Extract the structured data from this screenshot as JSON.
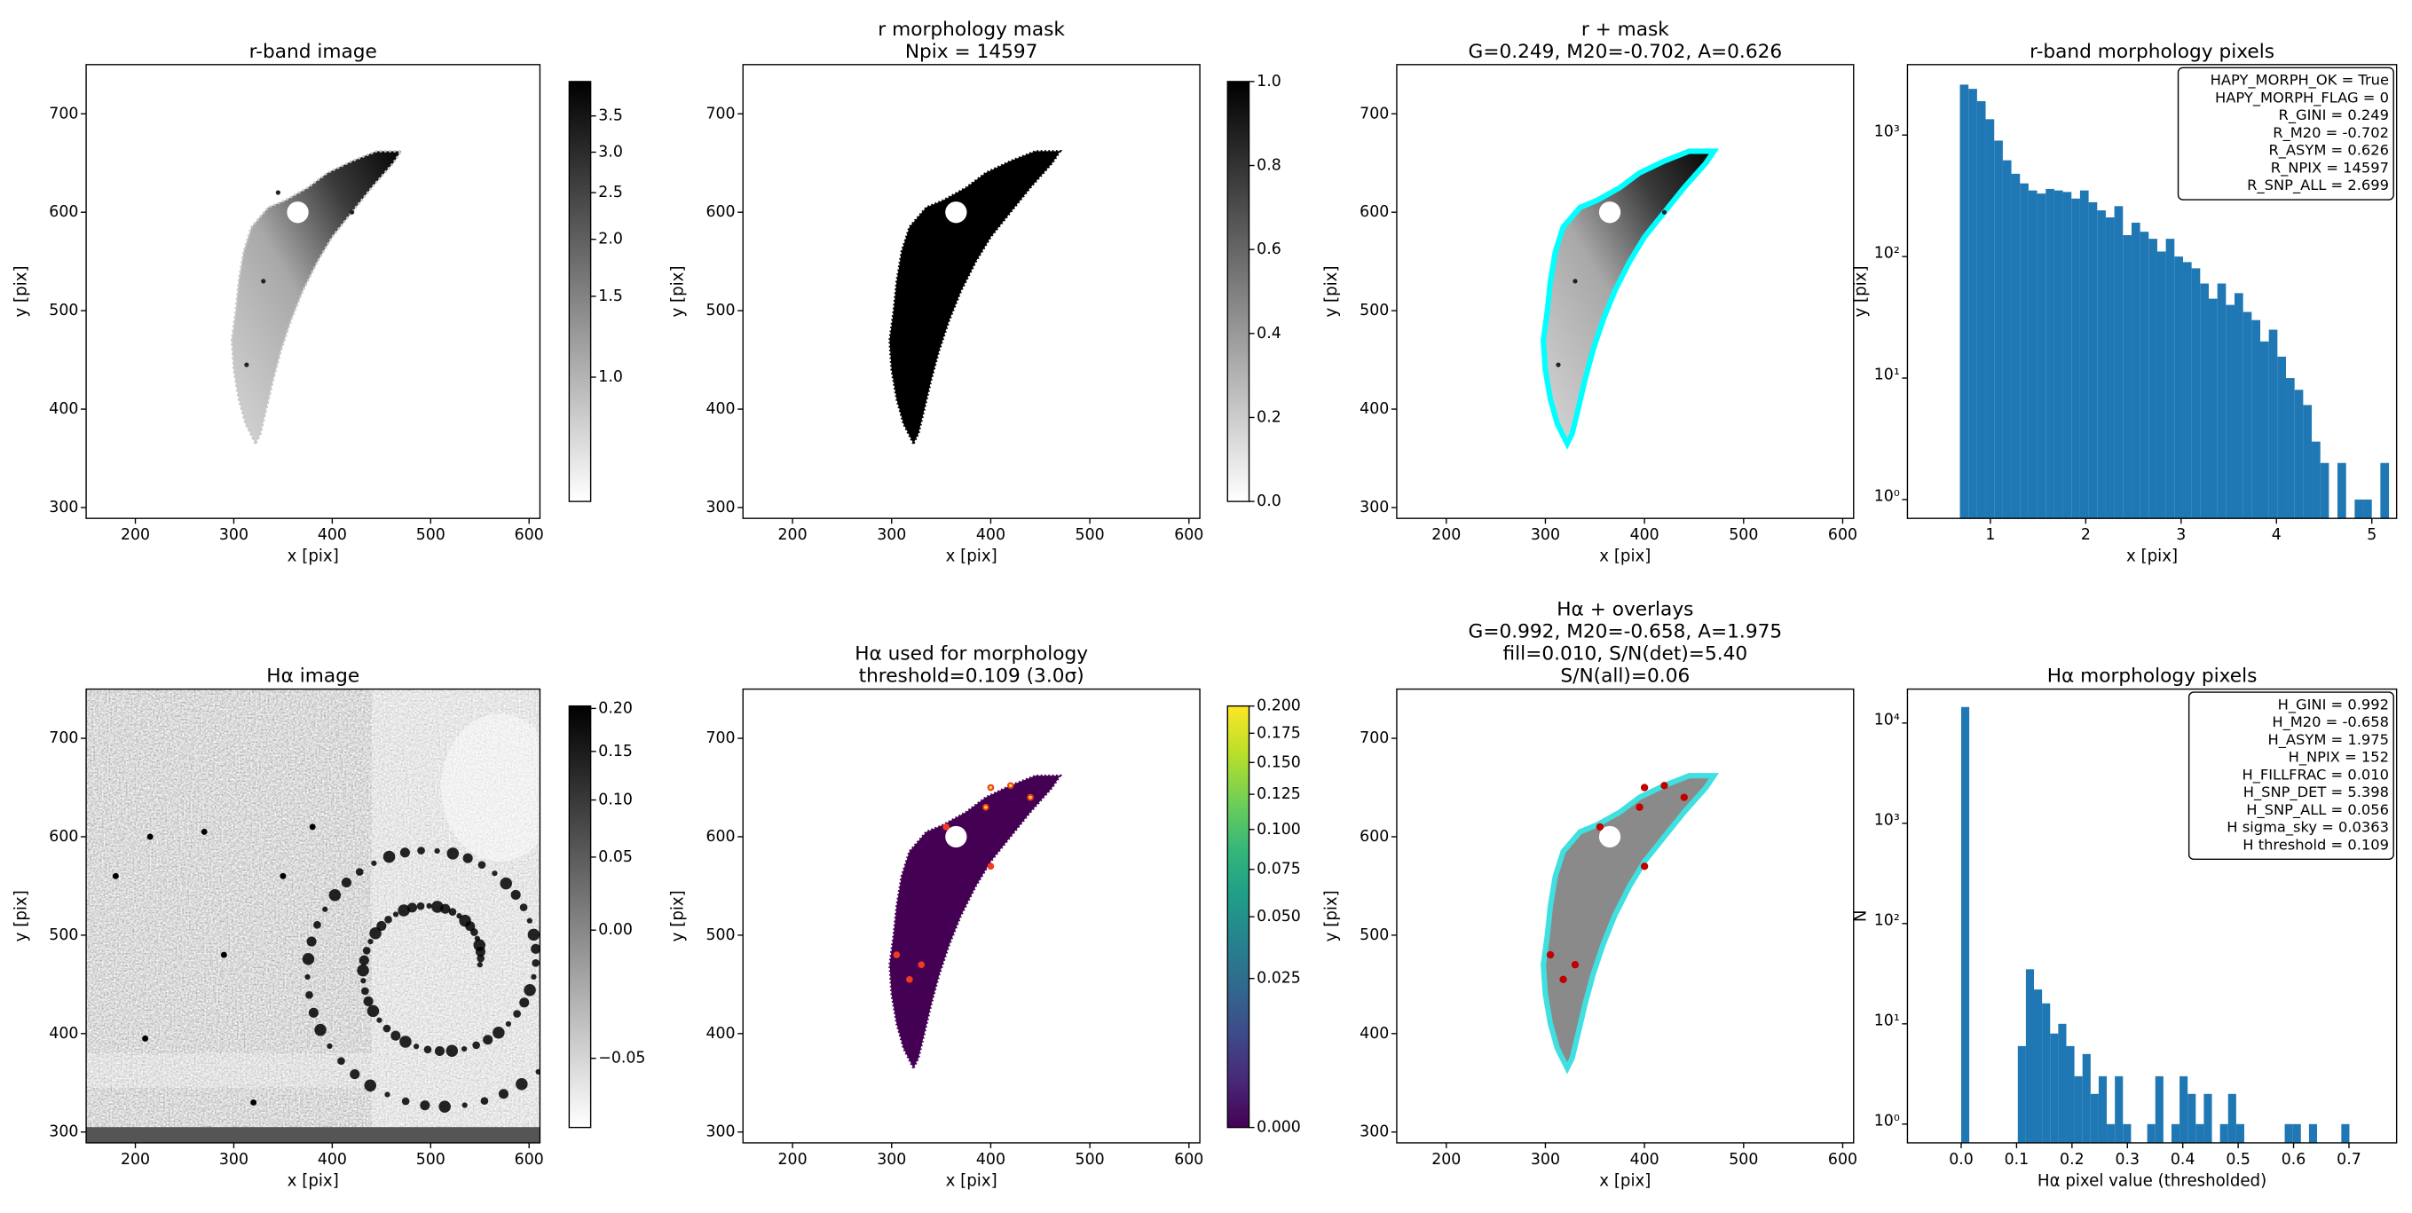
{
  "chart_data": [
    {
      "type": "image",
      "title": [
        "r-band image"
      ],
      "xlabel": "x [pix]",
      "ylabel": "y [pix]",
      "xlim": [
        150,
        611
      ],
      "ylim": [
        289,
        750
      ],
      "xticks": [
        200,
        300,
        400,
        500,
        600
      ],
      "yticks": [
        300,
        400,
        500,
        600,
        700
      ],
      "colorbar": {
        "cmap": "gray_r",
        "scale": "sqrt",
        "clim": [
          0.71,
          4.02
        ],
        "ticks": [
          {
            "value": 1,
            "label": "1.0"
          },
          1.5,
          {
            "value": 2,
            "label": "2.0"
          },
          2.5,
          {
            "value": 3,
            "label": "3.0"
          },
          3.5
        ]
      }
    },
    {
      "type": "image",
      "title": [
        "r morphology mask",
        "Npix = 14597"
      ],
      "xlabel": "x [pix]",
      "ylabel": "y [pix]",
      "xlim": [
        150,
        611
      ],
      "ylim": [
        289,
        750
      ],
      "xticks": [
        200,
        300,
        400,
        500,
        600
      ],
      "yticks": [
        300,
        400,
        500,
        600,
        700
      ],
      "colorbar": {
        "cmap": "gray_r",
        "scale": "linear",
        "clim": [
          0,
          1
        ],
        "ticks": [
          {
            "value": 0,
            "label": "0.0"
          },
          0.2,
          0.4,
          0.6,
          0.8,
          {
            "value": 1,
            "label": "1.0"
          }
        ]
      }
    },
    {
      "type": "image",
      "title": [
        "r + mask",
        "G=0.249, M20=-0.702, A=0.626"
      ],
      "xlabel": "x [pix]",
      "ylabel": "y [pix]",
      "xlim": [
        150,
        611
      ],
      "ylim": [
        289,
        750
      ],
      "xticks": [
        200,
        300,
        400,
        500,
        600
      ],
      "yticks": [
        300,
        400,
        500,
        600,
        700
      ]
    },
    {
      "type": "histogram",
      "title": [
        "r-band morphology pixels"
      ],
      "xlabel": "x [pix]",
      "ylabel": "y [pix]",
      "yscale": "log",
      "color": "#1f77b4",
      "xlim": [
        0.13,
        5.26
      ],
      "ylim": [
        0.7,
        3800
      ],
      "xticks": [
        1,
        2,
        3,
        4,
        5
      ],
      "yticks": [
        {
          "value": 1,
          "label": "10⁰"
        },
        {
          "value": 10,
          "label": "10¹"
        },
        {
          "value": 100,
          "label": "10²"
        },
        {
          "value": 1000,
          "label": "10³"
        }
      ],
      "bins": [
        0.68,
        0.77,
        0.86,
        0.95,
        1.04,
        1.13,
        1.22,
        1.31,
        1.4,
        1.49,
        1.58,
        1.67,
        1.76,
        1.85,
        1.94,
        2.03,
        2.12,
        2.21,
        2.3,
        2.39,
        2.48,
        2.57,
        2.66,
        2.75,
        2.84,
        2.93,
        3.02,
        3.11,
        3.2,
        3.29,
        3.38,
        3.47,
        3.56,
        3.65,
        3.74,
        3.83,
        3.92,
        4.01,
        4.1,
        4.19,
        4.28,
        4.37,
        4.46,
        4.55,
        4.64,
        4.73,
        4.82,
        4.91,
        5.0,
        5.09,
        5.18
      ],
      "counts": [
        2600,
        2400,
        1900,
        1350,
        900,
        620,
        480,
        400,
        350,
        330,
        360,
        350,
        340,
        300,
        350,
        280,
        240,
        210,
        260,
        150,
        190,
        160,
        140,
        110,
        140,
        100,
        90,
        80,
        60,
        45,
        60,
        40,
        50,
        35,
        30,
        20,
        25,
        15,
        10,
        8,
        6,
        3,
        2,
        0,
        2,
        0,
        1,
        1,
        0,
        2
      ],
      "annotation": [
        "HAPY_MORPH_OK = True",
        "HAPY_MORPH_FLAG = 0",
        "R_GINI = 0.249",
        "R_M20 = -0.702",
        "R_ASYM = 0.626",
        "R_NPIX = 14597",
        "R_SNP_ALL = 2.699"
      ]
    },
    {
      "type": "image",
      "title": [
        "Hα image"
      ],
      "xlabel": "x [pix]",
      "ylabel": "y [pix]",
      "xlim": [
        150,
        611
      ],
      "ylim": [
        289,
        750
      ],
      "xticks": [
        200,
        300,
        400,
        500,
        600
      ],
      "yticks": [
        300,
        400,
        500,
        600,
        700
      ],
      "colorbar": {
        "cmap": "gray_r",
        "scale": "sqrt",
        "clim": [
          -0.057,
          0.203
        ],
        "ticks": [
          {
            "value": -0.05,
            "label": "−0.05"
          },
          {
            "value": 0,
            "label": "0.00"
          },
          0.05,
          {
            "value": 0.1,
            "label": "0.10"
          },
          0.15,
          {
            "value": 0.2,
            "label": "0.20"
          }
        ]
      }
    },
    {
      "type": "image",
      "title": [
        "Hα used for morphology",
        "threshold=0.109 (3.0σ)"
      ],
      "xlabel": "x [pix]",
      "ylabel": "y [pix]",
      "xlim": [
        150,
        611
      ],
      "ylim": [
        289,
        750
      ],
      "xticks": [
        200,
        300,
        400,
        500,
        600
      ],
      "yticks": [
        300,
        400,
        500,
        600,
        700
      ],
      "colorbar": {
        "cmap": "viridis",
        "scale": "sqrt",
        "clim": [
          0,
          0.2
        ],
        "ticks": [
          {
            "value": 0,
            "label": "0.000"
          },
          0.025,
          {
            "value": 0.05,
            "label": "0.050"
          },
          0.075,
          {
            "value": 0.1,
            "label": "0.100"
          },
          0.125,
          {
            "value": 0.15,
            "label": "0.150"
          },
          0.175,
          {
            "value": 0.2,
            "label": "0.200"
          }
        ]
      }
    },
    {
      "type": "image",
      "title": [
        "Hα + overlays",
        "G=0.992, M20=-0.658, A=1.975",
        "fill=0.010, S/N(det)=5.40",
        "S/N(all)=0.06"
      ],
      "xlabel": "x [pix]",
      "ylabel": "y [pix]",
      "xlim": [
        150,
        611
      ],
      "ylim": [
        289,
        750
      ],
      "xticks": [
        200,
        300,
        400,
        500,
        600
      ],
      "yticks": [
        300,
        400,
        500,
        600,
        700
      ]
    },
    {
      "type": "histogram",
      "title": [
        "Hα morphology pixels"
      ],
      "xlabel": "Hα pixel value (thresholded)",
      "ylabel": "N",
      "yscale": "log",
      "color": "#1f77b4",
      "xlim": [
        -0.097,
        0.786
      ],
      "ylim": [
        0.65,
        21800
      ],
      "xticks": [
        {
          "value": 0,
          "label": "0.0"
        },
        0.1,
        0.2,
        0.3,
        0.4,
        0.5,
        0.6,
        0.7
      ],
      "yticks": [
        {
          "value": 1,
          "label": "10⁰"
        },
        {
          "value": 10,
          "label": "10¹"
        },
        {
          "value": 100,
          "label": "10²"
        },
        {
          "value": 1000,
          "label": "10³"
        },
        {
          "value": 10000,
          "label": "10⁴"
        }
      ],
      "bins": [
        0,
        0.0146,
        0.0292,
        0.0438,
        0.0584,
        0.073,
        0.0876,
        0.1022,
        0.1168,
        0.1314,
        0.146,
        0.1606,
        0.1752,
        0.1898,
        0.2044,
        0.219,
        0.2336,
        0.2482,
        0.2628,
        0.2774,
        0.292,
        0.3066,
        0.3212,
        0.3358,
        0.3504,
        0.365,
        0.3796,
        0.3942,
        0.4088,
        0.4234,
        0.438,
        0.4526,
        0.4672,
        0.4818,
        0.4964,
        0.511,
        0.5256,
        0.5402,
        0.5548,
        0.5694,
        0.584,
        0.5986,
        0.6132,
        0.6278,
        0.6424,
        0.657,
        0.6716,
        0.6862,
        0.7008
      ],
      "counts": [
        14445,
        0,
        0,
        0,
        0,
        0,
        0,
        6,
        35,
        22,
        16,
        8,
        10,
        6,
        3,
        5,
        2,
        3,
        1,
        3,
        1,
        0,
        0,
        1,
        3,
        0,
        1,
        3,
        2,
        1,
        2,
        0,
        1,
        2,
        1,
        0,
        0,
        0,
        0,
        0,
        1,
        1,
        0,
        1,
        0,
        0,
        0,
        1
      ],
      "annotation": [
        "H_GINI = 0.992",
        "H_M20 = -0.658",
        "H_ASYM = 1.975",
        "H_NPIX = 152",
        "H_FILLFRAC = 0.010",
        "H_SNP_DET = 5.398",
        "H_SNP_ALL = 0.056",
        "H sigma_sky = 0.0363",
        "H threshold = 0.109"
      ]
    }
  ]
}
